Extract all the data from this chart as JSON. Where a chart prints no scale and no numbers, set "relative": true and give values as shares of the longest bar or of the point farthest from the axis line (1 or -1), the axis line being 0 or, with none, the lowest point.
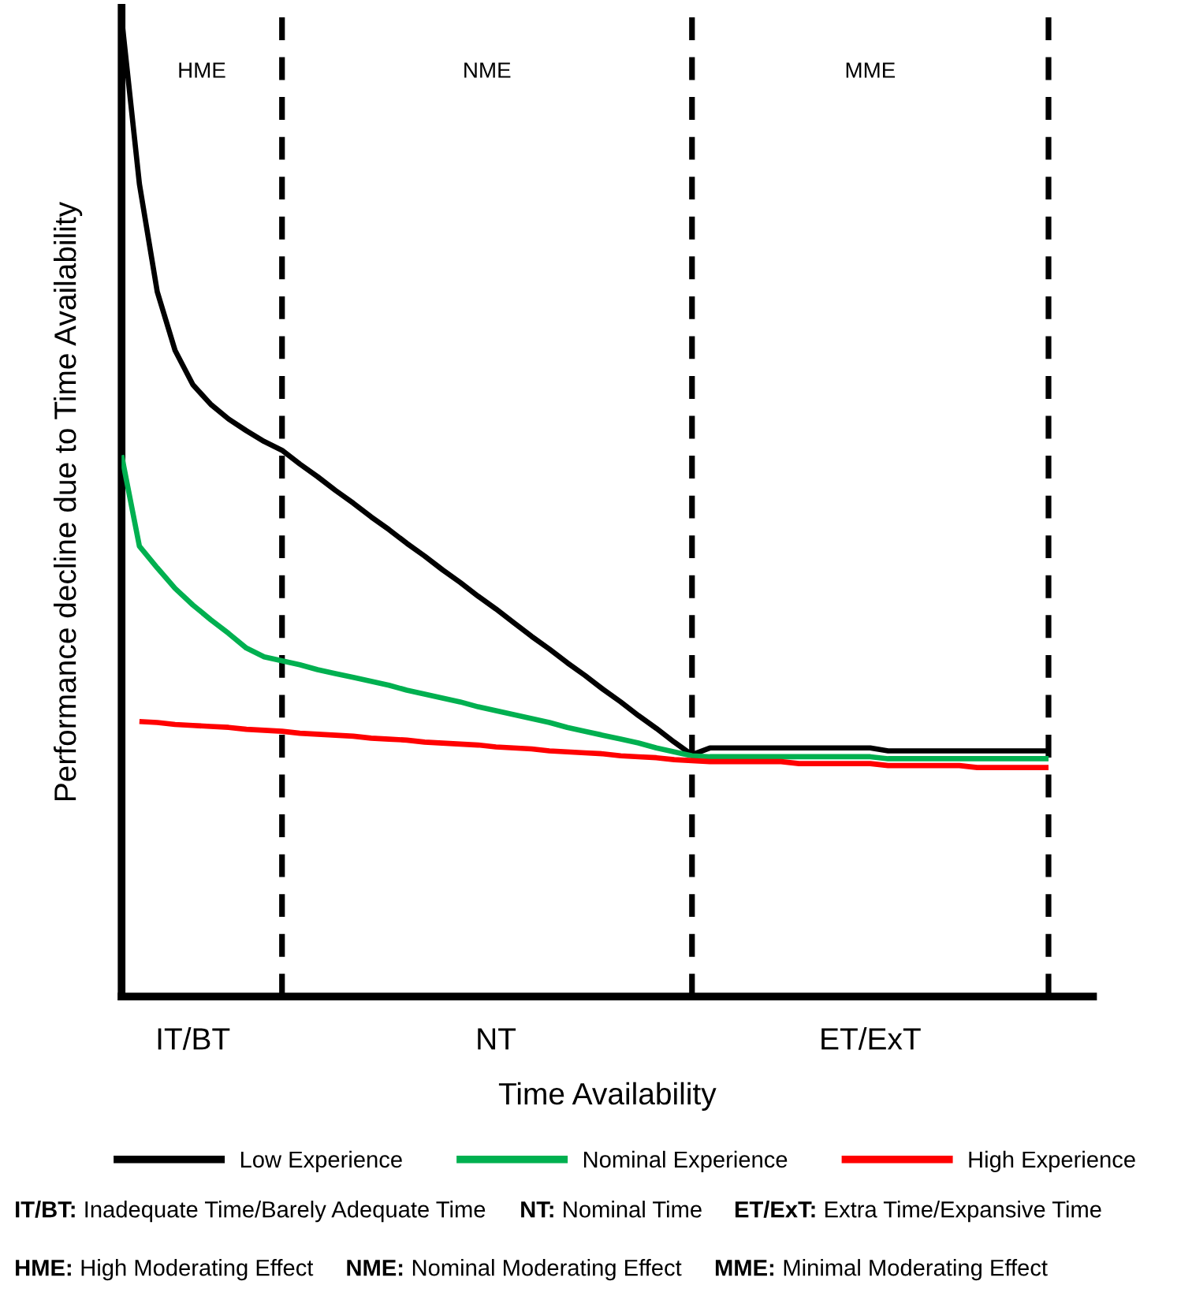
{
  "chart_data": {
    "type": "line",
    "relative": true,
    "xlabel": "Time Availability",
    "ylabel": "Performance decline due to Time Availability",
    "categories": [
      null,
      null,
      null,
      null,
      "IT/BT",
      null,
      null,
      null,
      null,
      null,
      null,
      null,
      null,
      null,
      null,
      null,
      null,
      null,
      null,
      null,
      null,
      "NT",
      null,
      null,
      null,
      null,
      null,
      null,
      null,
      null,
      null,
      null,
      null,
      null,
      null,
      null,
      null,
      null,
      null,
      null,
      null,
      null,
      "ET/ExT",
      null,
      null,
      null,
      null,
      null,
      null,
      null,
      null,
      null,
      null,
      null,
      null
    ],
    "series": [
      {
        "name": "Low Experience",
        "color": "#000000",
        "values": [
          1.0,
          0.83,
          0.72,
          0.66,
          0.625,
          0.605,
          0.59,
          0.578,
          0.567,
          0.558,
          0.544,
          0.531,
          0.517,
          0.504,
          0.49,
          0.477,
          0.463,
          0.45,
          0.436,
          0.423,
          0.409,
          0.396,
          0.382,
          0.368,
          0.355,
          0.341,
          0.328,
          0.314,
          0.301,
          0.287,
          0.274,
          0.26,
          0.247,
          0.254,
          0.254,
          0.254,
          0.254,
          0.254,
          0.254,
          0.254,
          0.254,
          0.254,
          0.254,
          0.251,
          0.251,
          0.251,
          0.251,
          0.251,
          0.251,
          0.251,
          0.251,
          0.251,
          0.251,
          null,
          null
        ]
      },
      {
        "name": "Nominal Experience",
        "color": "#00b050",
        "values": [
          0.553,
          0.46,
          0.438,
          0.417,
          0.4,
          0.385,
          0.371,
          0.356,
          0.347,
          0.343,
          0.339,
          0.334,
          0.33,
          0.326,
          0.322,
          0.318,
          0.313,
          0.309,
          0.305,
          0.301,
          0.296,
          0.292,
          0.288,
          0.284,
          0.28,
          0.275,
          0.271,
          0.267,
          0.263,
          0.259,
          0.254,
          0.25,
          0.246,
          0.245,
          0.245,
          0.245,
          0.245,
          0.245,
          0.245,
          0.245,
          0.245,
          0.245,
          0.245,
          0.243,
          0.243,
          0.243,
          0.243,
          0.243,
          0.243,
          0.243,
          0.243,
          0.243,
          0.243,
          null,
          null
        ]
      },
      {
        "name": "High Experience",
        "color": "#ff0000",
        "values": [
          null,
          0.281,
          0.28,
          0.278,
          0.277,
          0.276,
          0.275,
          0.273,
          0.272,
          0.271,
          0.269,
          0.268,
          0.267,
          0.266,
          0.264,
          0.263,
          0.262,
          0.26,
          0.259,
          0.258,
          0.257,
          0.255,
          0.254,
          0.253,
          0.251,
          0.25,
          0.249,
          0.248,
          0.246,
          0.245,
          0.244,
          0.242,
          0.241,
          0.24,
          0.24,
          0.24,
          0.24,
          0.24,
          0.238,
          0.238,
          0.238,
          0.238,
          0.238,
          0.236,
          0.236,
          0.236,
          0.236,
          0.236,
          0.234,
          0.234,
          0.234,
          0.234,
          0.234,
          null,
          null
        ]
      }
    ],
    "legend": "bottom",
    "grid": false,
    "marker": "none",
    "line_style": "solid",
    "annotations": [
      "HME",
      "NME",
      "MME",
      "IT/BT: Inadequate Time/Barely Adequate Time",
      "NT: Nominal Time",
      "ET/ExT: Extra Time/Expansive Time",
      "HME: High Moderating Effect",
      "NME: Nominal Moderating Effect",
      "MME: Minimal Moderating Effect"
    ]
  }
}
